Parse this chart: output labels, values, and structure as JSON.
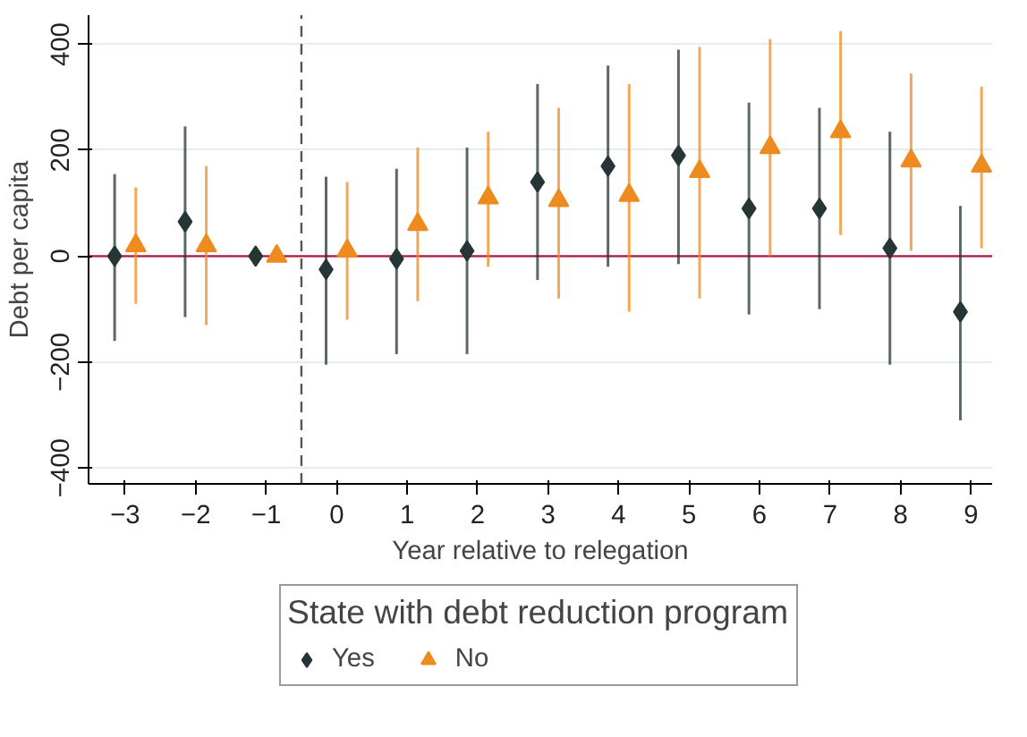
{
  "chart_data": {
    "type": "scatter",
    "xlabel": "Year relative to relegation",
    "ylabel": "Debt per capita",
    "legend_title": "State with debt reduction program",
    "xlim": [
      -3.52,
      9.3
    ],
    "ylim": [
      -430,
      455
    ],
    "xticks": [
      -3,
      -2,
      -1,
      0,
      1,
      2,
      3,
      4,
      5,
      6,
      7,
      8,
      9
    ],
    "yticks": [
      -400,
      -200,
      0,
      200,
      400
    ],
    "grid": "y",
    "legend": "bottom",
    "series": [
      {
        "name": "Yes",
        "color": "#263636",
        "marker": "diamond",
        "x": [
          -3.15,
          -2.15,
          -1.15,
          -0.15,
          0.85,
          1.85,
          2.85,
          3.85,
          4.85,
          5.85,
          6.85,
          7.85,
          8.85
        ],
        "values": [
          0,
          65,
          0,
          -25,
          -5,
          10,
          140,
          170,
          190,
          90,
          90,
          15,
          -105
        ],
        "errors": [
          [
            -160,
            155
          ],
          [
            -115,
            245
          ],
          null,
          [
            -205,
            150
          ],
          [
            -185,
            165
          ],
          [
            -185,
            205
          ],
          [
            -45,
            325
          ],
          [
            -20,
            360
          ],
          [
            -15,
            390
          ],
          [
            -110,
            290
          ],
          [
            -100,
            280
          ],
          [
            -205,
            235
          ],
          [
            -310,
            95
          ]
        ]
      },
      {
        "name": "No",
        "color": "#ed8b1f",
        "marker": "triangle",
        "x": [
          -2.85,
          -1.85,
          -0.85,
          0.15,
          1.15,
          2.15,
          3.15,
          4.15,
          5.15,
          6.15,
          7.15,
          8.15,
          9.15
        ],
        "values": [
          20,
          20,
          0,
          10,
          60,
          110,
          105,
          115,
          160,
          205,
          235,
          180,
          170
        ],
        "errors": [
          [
            -90,
            130
          ],
          [
            -130,
            170
          ],
          null,
          [
            -120,
            140
          ],
          [
            -85,
            205
          ],
          [
            -20,
            235
          ],
          [
            -80,
            280
          ],
          [
            -105,
            325
          ],
          [
            -80,
            395
          ],
          [
            0,
            410
          ],
          [
            40,
            425
          ],
          [
            10,
            345
          ],
          [
            15,
            320
          ]
        ]
      }
    ],
    "ref_lines": [
      {
        "axis": "y",
        "value": 0,
        "color": "#b0173e",
        "line_style": "solid"
      },
      {
        "axis": "x",
        "value": -0.5,
        "color": "#555555",
        "line_style": "dashed"
      }
    ]
  }
}
